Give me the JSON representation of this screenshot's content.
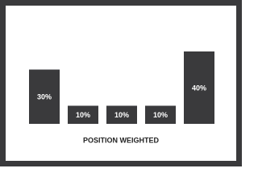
{
  "chart_data": {
    "type": "bar",
    "title": "POSITION WEIGHTED",
    "categories": [
      null,
      null,
      null,
      null,
      null
    ],
    "values": [
      30,
      10,
      10,
      10,
      40
    ],
    "value_labels": [
      "30%",
      "10%",
      "10%",
      "10%",
      "40%"
    ],
    "color": "#3a3a3c"
  }
}
